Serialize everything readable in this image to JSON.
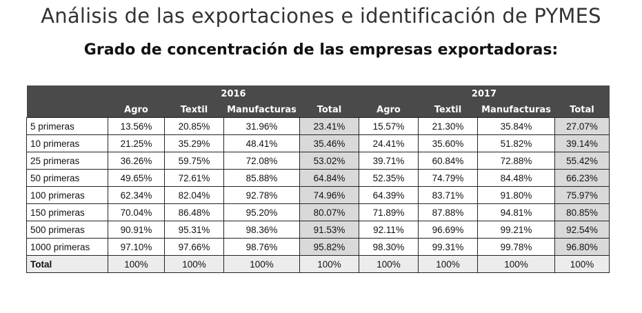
{
  "title": "Análisis de las exportaciones e identificación de PYMES",
  "subtitle": "Grado de concentración de las empresas exportadoras:",
  "table": {
    "years": [
      "2016",
      "2017"
    ],
    "columns": [
      "Agro",
      "Textil",
      "Manufacturas",
      "Total",
      "Agro",
      "Textil",
      "Manufacturas",
      "Total"
    ],
    "rows": [
      {
        "label": "5 primeras",
        "values": [
          "13.56%",
          "20.85%",
          "31.96%",
          "23.41%",
          "15.57%",
          "21.30%",
          "35.84%",
          "27.07%"
        ]
      },
      {
        "label": "10 primeras",
        "values": [
          "21.25%",
          "35.29%",
          "48.41%",
          "35.46%",
          "24.41%",
          "35.60%",
          "51.82%",
          "39.14%"
        ]
      },
      {
        "label": "25 primeras",
        "values": [
          "36.26%",
          "59.75%",
          "72.08%",
          "53.02%",
          "39.71%",
          "60.84%",
          "72.88%",
          "55.42%"
        ]
      },
      {
        "label": "50 primeras",
        "values": [
          "49.65%",
          "72.61%",
          "85.88%",
          "64.84%",
          "52.35%",
          "74.79%",
          "84.48%",
          "66.23%"
        ]
      },
      {
        "label": "100 primeras",
        "values": [
          "62.34%",
          "82.04%",
          "92.78%",
          "74.96%",
          "64.39%",
          "83.71%",
          "91.80%",
          "75.97%"
        ]
      },
      {
        "label": "150 primeras",
        "values": [
          "70.04%",
          "86.48%",
          "95.20%",
          "80.07%",
          "71.89%",
          "87.88%",
          "94.81%",
          "80.85%"
        ]
      },
      {
        "label": "500 primeras",
        "values": [
          "90.91%",
          "95.31%",
          "98.36%",
          "91.53%",
          "92.11%",
          "96.69%",
          "99.21%",
          "92.54%"
        ]
      },
      {
        "label": "1000 primeras",
        "values": [
          "97.10%",
          "97.66%",
          "98.76%",
          "95.82%",
          "98.30%",
          "99.31%",
          "99.78%",
          "96.80%"
        ]
      },
      {
        "label": "Total",
        "values": [
          "100%",
          "100%",
          "100%",
          "100%",
          "100%",
          "100%",
          "100%",
          "100%"
        ]
      }
    ]
  }
}
